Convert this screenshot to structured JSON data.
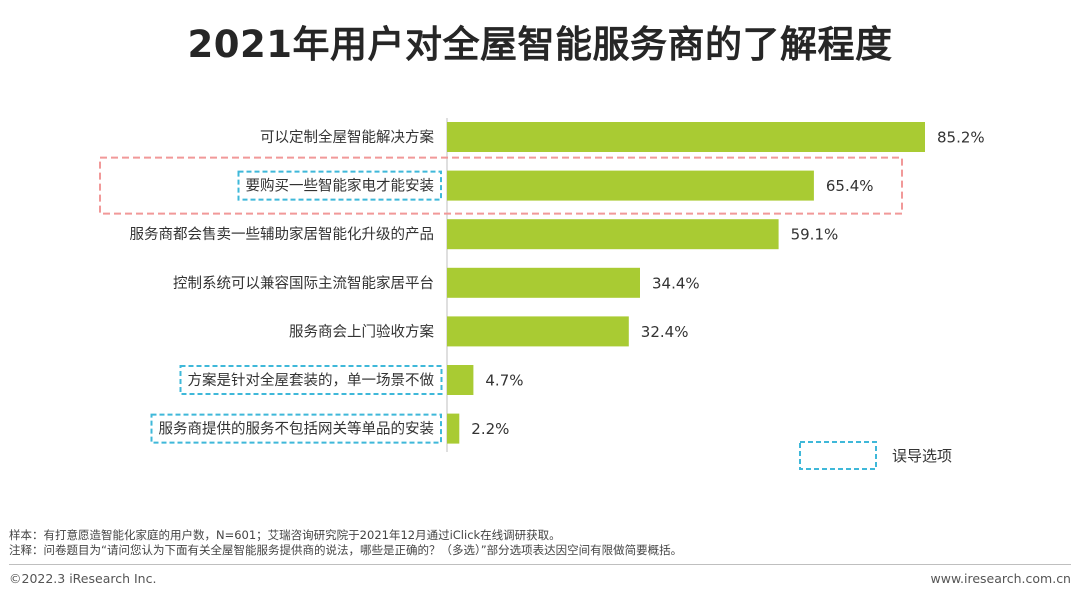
{
  "title": "2021年用户对全屋智能服务商的了解程度",
  "colors": {
    "bar": "#a9cb33",
    "axis": "#bfbfbf",
    "highlight_box": "#f19999",
    "misleading_box": "#3fb8d9",
    "label_text": "#333333"
  },
  "chart_data": {
    "type": "bar",
    "orientation": "horizontal",
    "title": "2021年用户对全屋智能服务商的了解程度",
    "categories": [
      "可以定制全屋智能解决方案",
      "要购买一些智能家电才能安装",
      "服务商都会售卖一些辅助家居智能化升级的产品",
      "控制系统可以兼容国际主流智能家居平台",
      "服务商会上门验收方案",
      "方案是针对全屋套装的，单一场景不做",
      "服务商提供的服务不包括网关等单品的安装"
    ],
    "values": [
      85.2,
      65.4,
      59.1,
      34.4,
      32.4,
      4.7,
      2.2
    ],
    "value_labels": [
      "85.2%",
      "65.4%",
      "59.1%",
      "34.4%",
      "32.4%",
      "4.7%",
      "2.2%"
    ],
    "unit": "%",
    "xlim": [
      0,
      90
    ],
    "highlighted": [
      1
    ],
    "misleading": [
      1,
      5,
      6
    ],
    "legend": {
      "label": "误导选项",
      "placement": "bottom-right"
    }
  },
  "notes": {
    "sample": "样本：有打意愿造智能化家庭的用户数，N=601；艾瑞咨询研究院于2021年12月通过iClick在线调研获取。",
    "note": "注释：问卷题目为“请问您认为下面有关全屋智能服务提供商的说法，哪些是正确的？（多选）”部分选项表达因空间有限做简要概括。"
  },
  "footer": {
    "copyright": "©2022.3 iResearch Inc.",
    "website": "www.iresearch.com.cn"
  }
}
